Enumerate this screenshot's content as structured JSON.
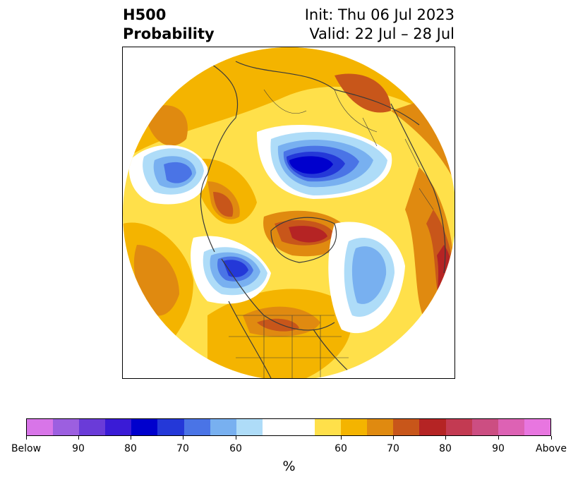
{
  "header": {
    "title_line1": "H500",
    "title_line2": "Probability",
    "init_line": "Init: Thu 06 Jul 2023",
    "valid_line": "Valid: 22 Jul – 28 Jul"
  },
  "colorbar": {
    "unit": "%",
    "colors": [
      "#d875e8",
      "#9c5fe0",
      "#6a3bd8",
      "#3a1bd6",
      "#0000cd",
      "#2438d8",
      "#4a74e6",
      "#78b0f0",
      "#aedcf8",
      "#ffffff",
      "#ffffff",
      "#ffe04a",
      "#f4b400",
      "#e08a10",
      "#c8561a",
      "#b52424",
      "#c33a52",
      "#cc4e82",
      "#dd62b4",
      "#e876e0"
    ],
    "tick_labels": [
      "Below",
      "90",
      "80",
      "70",
      "60",
      "60",
      "70",
      "80",
      "90",
      "Above"
    ]
  },
  "map_colors": {
    "below": [
      "#aedcf8",
      "#78b0f0",
      "#4a74e6",
      "#2438d8",
      "#0000cd"
    ],
    "above": [
      "#ffe04a",
      "#f4b400",
      "#e08a10",
      "#c8561a",
      "#b52424"
    ],
    "land_outline": "#3a3a3a"
  }
}
